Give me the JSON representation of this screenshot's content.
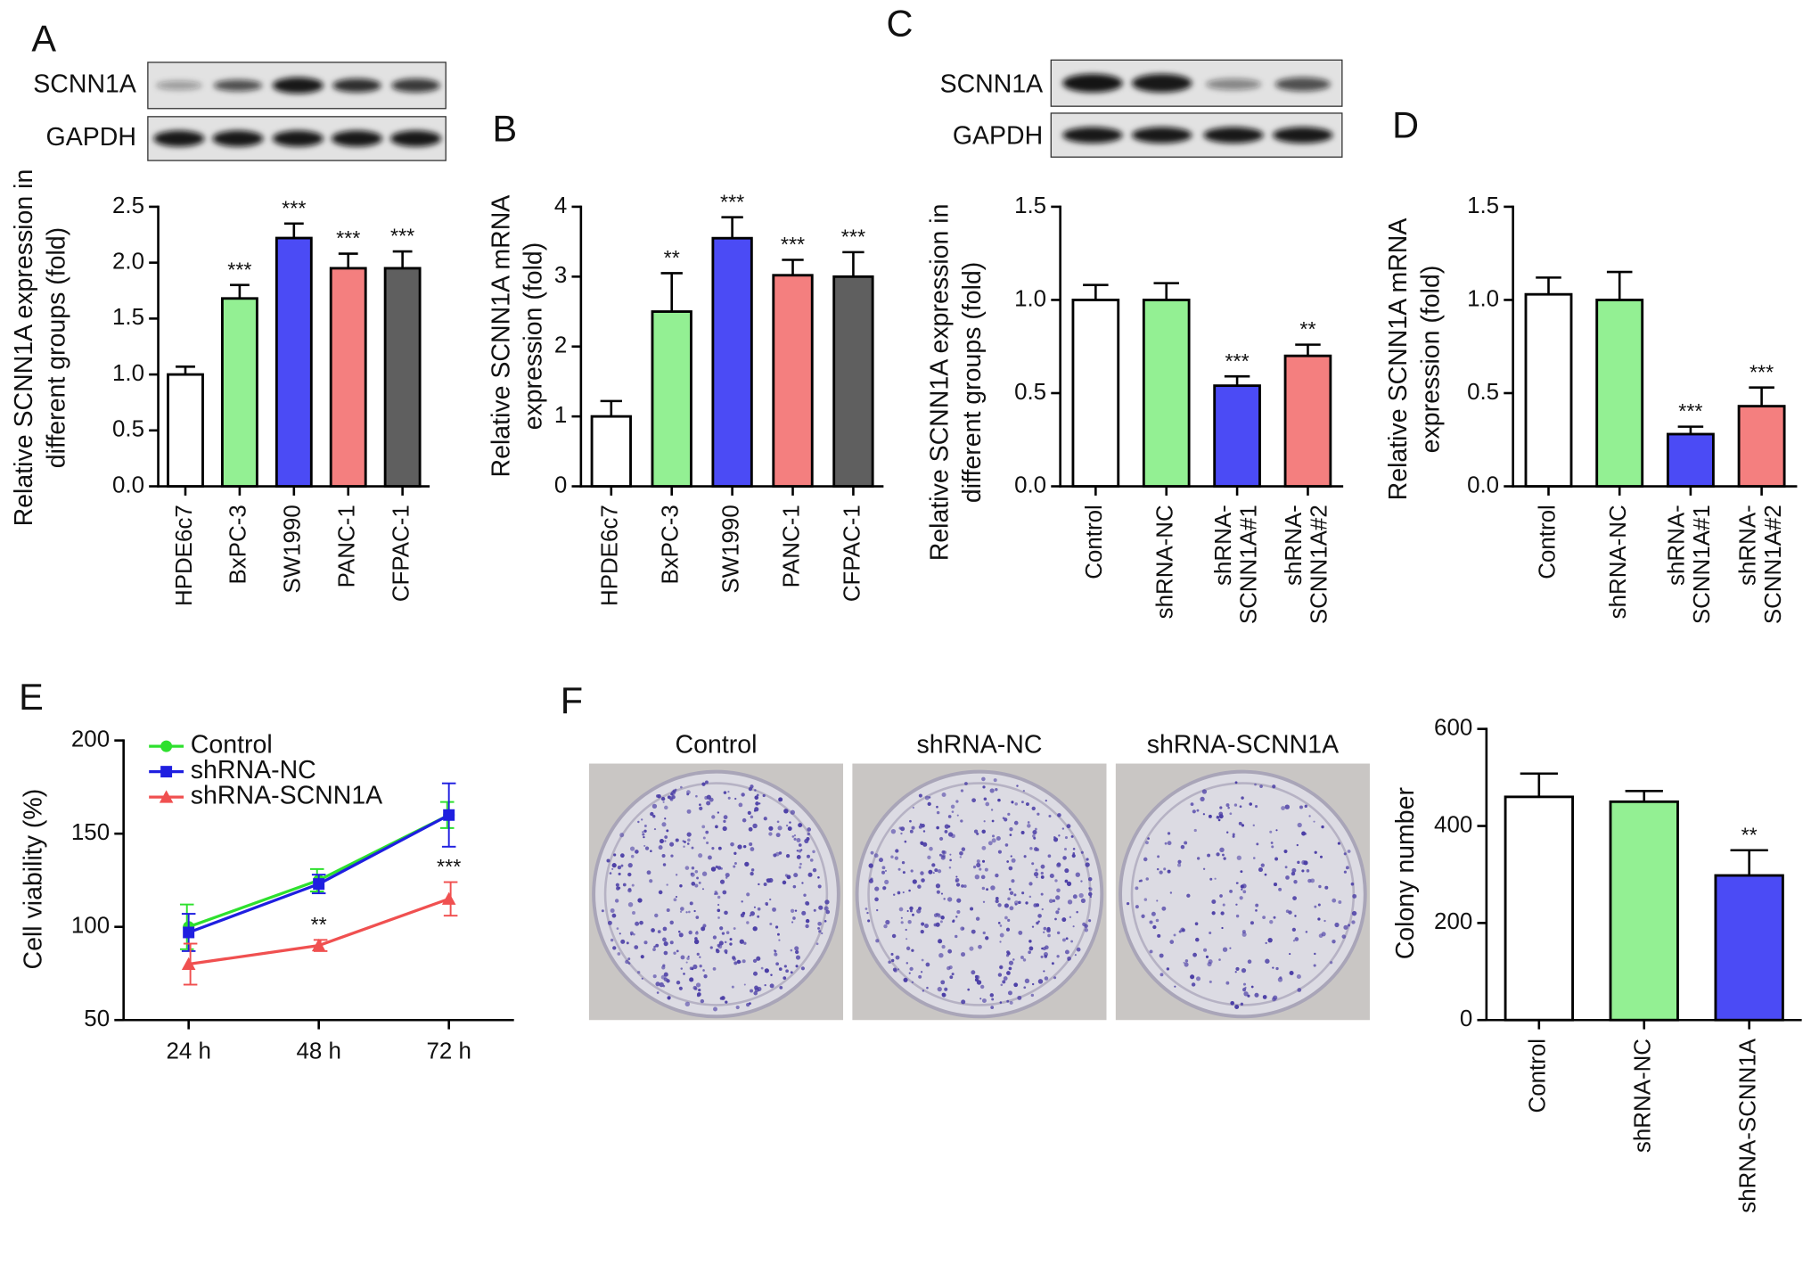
{
  "chart_data": [
    {
      "type": "bar",
      "panel": "A",
      "blot_labels": [
        "SCNN1A",
        "GAPDH"
      ],
      "y_label": [
        "Relative SCNN1A expression in",
        "different groups (fold)"
      ],
      "categories": [
        "HPDE6c7",
        "BxPC-3",
        "SW1990",
        "PANC-1",
        "CFPAC-1"
      ],
      "values": [
        1.0,
        1.68,
        2.22,
        1.95,
        1.95
      ],
      "errors": [
        0.07,
        0.12,
        0.13,
        0.13,
        0.15
      ],
      "annotations": [
        null,
        "***",
        "***",
        "***",
        "***"
      ],
      "colors": [
        "#ffffff",
        "#93f093",
        "#4b4bf5",
        "#f47f7f",
        "#5f5f5f"
      ],
      "ylim": [
        0,
        2.5
      ],
      "yticks": [
        {
          "value": 0,
          "label": "0.0"
        },
        0.5,
        {
          "value": 1,
          "label": "1.0"
        },
        1.5,
        {
          "value": 2,
          "label": "2.0"
        },
        2.5
      ]
    },
    {
      "type": "bar",
      "panel": "B",
      "y_label": [
        "Relative SCNN1A mRNA",
        "expression (fold)"
      ],
      "categories": [
        "HPDE6c7",
        "BxPC-3",
        "SW1990",
        "PANC-1",
        "CFPAC-1"
      ],
      "values": [
        1.0,
        2.5,
        3.55,
        3.02,
        3.0
      ],
      "errors": [
        0.22,
        0.55,
        0.3,
        0.22,
        0.35
      ],
      "annotations": [
        null,
        "**",
        "***",
        "***",
        "***"
      ],
      "colors": [
        "#ffffff",
        "#93f093",
        "#4b4bf5",
        "#f47f7f",
        "#5f5f5f"
      ],
      "ylim": [
        0,
        4
      ],
      "yticks": [
        0,
        1,
        2,
        3,
        4
      ]
    },
    {
      "type": "bar",
      "panel": "C",
      "blot_labels": [
        "SCNN1A",
        "GAPDH"
      ],
      "wrap_labels": true,
      "y_label": [
        "Relative SCNN1A expression in",
        "different groups (fold)"
      ],
      "categories": [
        "Control",
        "shRNA-NC",
        "shRNA-SCNN1A#1",
        "shRNA-SCNN1A#2"
      ],
      "values": [
        1.0,
        1.0,
        0.54,
        0.7
      ],
      "errors": [
        0.08,
        0.09,
        0.05,
        0.06
      ],
      "annotations": [
        null,
        null,
        "***",
        "**"
      ],
      "colors": [
        "#ffffff",
        "#93f093",
        "#4b4bf5",
        "#f47f7f"
      ],
      "ylim": [
        0,
        1.5
      ],
      "yticks": [
        {
          "value": 0,
          "label": "0.0"
        },
        0.5,
        {
          "value": 1,
          "label": "1.0"
        },
        1.5
      ]
    },
    {
      "type": "bar",
      "panel": "D",
      "wrap_labels": true,
      "y_label": [
        "Relative SCNN1A mRNA",
        "expression (fold)"
      ],
      "categories": [
        "Control",
        "shRNA-NC",
        "shRNA-SCNN1A#1",
        "shRNA-SCNN1A#2"
      ],
      "values": [
        1.03,
        1.0,
        0.28,
        0.43
      ],
      "errors": [
        0.09,
        0.15,
        0.04,
        0.1
      ],
      "annotations": [
        null,
        null,
        "***",
        "***"
      ],
      "colors": [
        "#ffffff",
        "#93f093",
        "#4b4bf5",
        "#f47f7f"
      ],
      "ylim": [
        0,
        1.5
      ],
      "yticks": [
        {
          "value": 0,
          "label": "0.0"
        },
        0.5,
        {
          "value": 1,
          "label": "1.0"
        },
        1.5
      ]
    },
    {
      "type": "line",
      "panel": "E",
      "y_label": [
        "Cell viability (%)"
      ],
      "categories": [
        "24 h",
        "48 h",
        "72 h"
      ],
      "series": [
        {
          "name": "Control",
          "color": "#2ee02e",
          "marker": "circle",
          "values": [
            100,
            125,
            160
          ],
          "errors": [
            12,
            6,
            7
          ]
        },
        {
          "name": "shRNA-NC",
          "color": "#1f1fe0",
          "marker": "square",
          "values": [
            97,
            123,
            160
          ],
          "errors": [
            10,
            5,
            17
          ]
        },
        {
          "name": "shRNA-SCNN1A",
          "color": "#f05050",
          "marker": "triangle",
          "values": [
            80,
            90,
            115
          ],
          "errors": [
            11,
            3,
            9
          ]
        }
      ],
      "annotations": [
        null,
        "**",
        "***"
      ],
      "ylim": [
        50,
        200
      ],
      "yticks": [
        50,
        100,
        150,
        200
      ],
      "legend": "upper-left"
    },
    {
      "type": "bar",
      "panel": "F",
      "image_labels": [
        "Control",
        "shRNA-NC",
        "shRNA-SCNN1A"
      ],
      "y_label": [
        "Colony number"
      ],
      "categories": [
        "Control",
        "shRNA-NC",
        "shRNA-SCNN1A"
      ],
      "values": [
        460,
        450,
        298
      ],
      "errors": [
        48,
        22,
        52
      ],
      "annotations": [
        null,
        null,
        "**"
      ],
      "colors": [
        "#ffffff",
        "#93f093",
        "#4b4bf5"
      ],
      "ylim": [
        0,
        600
      ],
      "yticks": [
        0,
        200,
        400,
        600
      ]
    }
  ]
}
